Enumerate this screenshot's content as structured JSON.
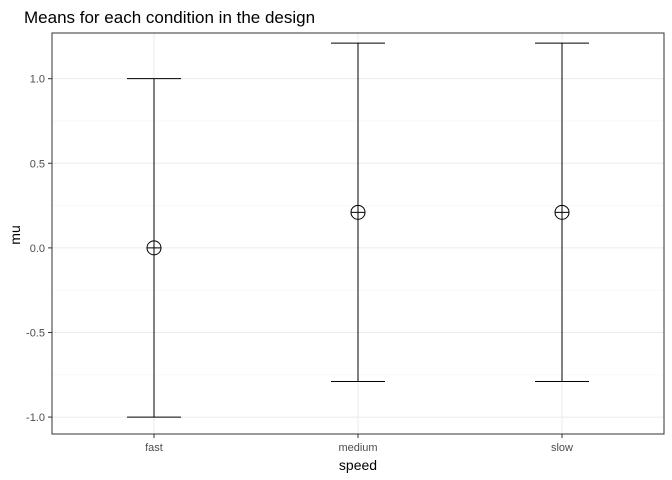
{
  "chart_data": {
    "type": "errorbar",
    "title": "Means for each condition in the design",
    "xlabel": "speed",
    "ylabel": "mu",
    "categories": [
      "fast",
      "medium",
      "slow"
    ],
    "means": [
      0.0,
      0.21,
      0.21
    ],
    "lower": [
      -1.0,
      -0.79,
      -0.79
    ],
    "upper": [
      1.0,
      1.21,
      1.21
    ],
    "ylim": [
      -1.1,
      1.27
    ],
    "yticks": [
      -1.0,
      -0.5,
      0.0,
      0.5,
      1.0
    ],
    "ytick_labels": [
      "-1.0",
      "-0.5",
      "0.0",
      "0.5",
      "1.0"
    ],
    "grid": true,
    "legend": "none",
    "colors": {
      "line": "#000000",
      "grid_major": "#ebebeb",
      "grid_minor": "#f5f5f5",
      "panel_border": "#333333",
      "tick_label": "#4d4d4d"
    }
  }
}
